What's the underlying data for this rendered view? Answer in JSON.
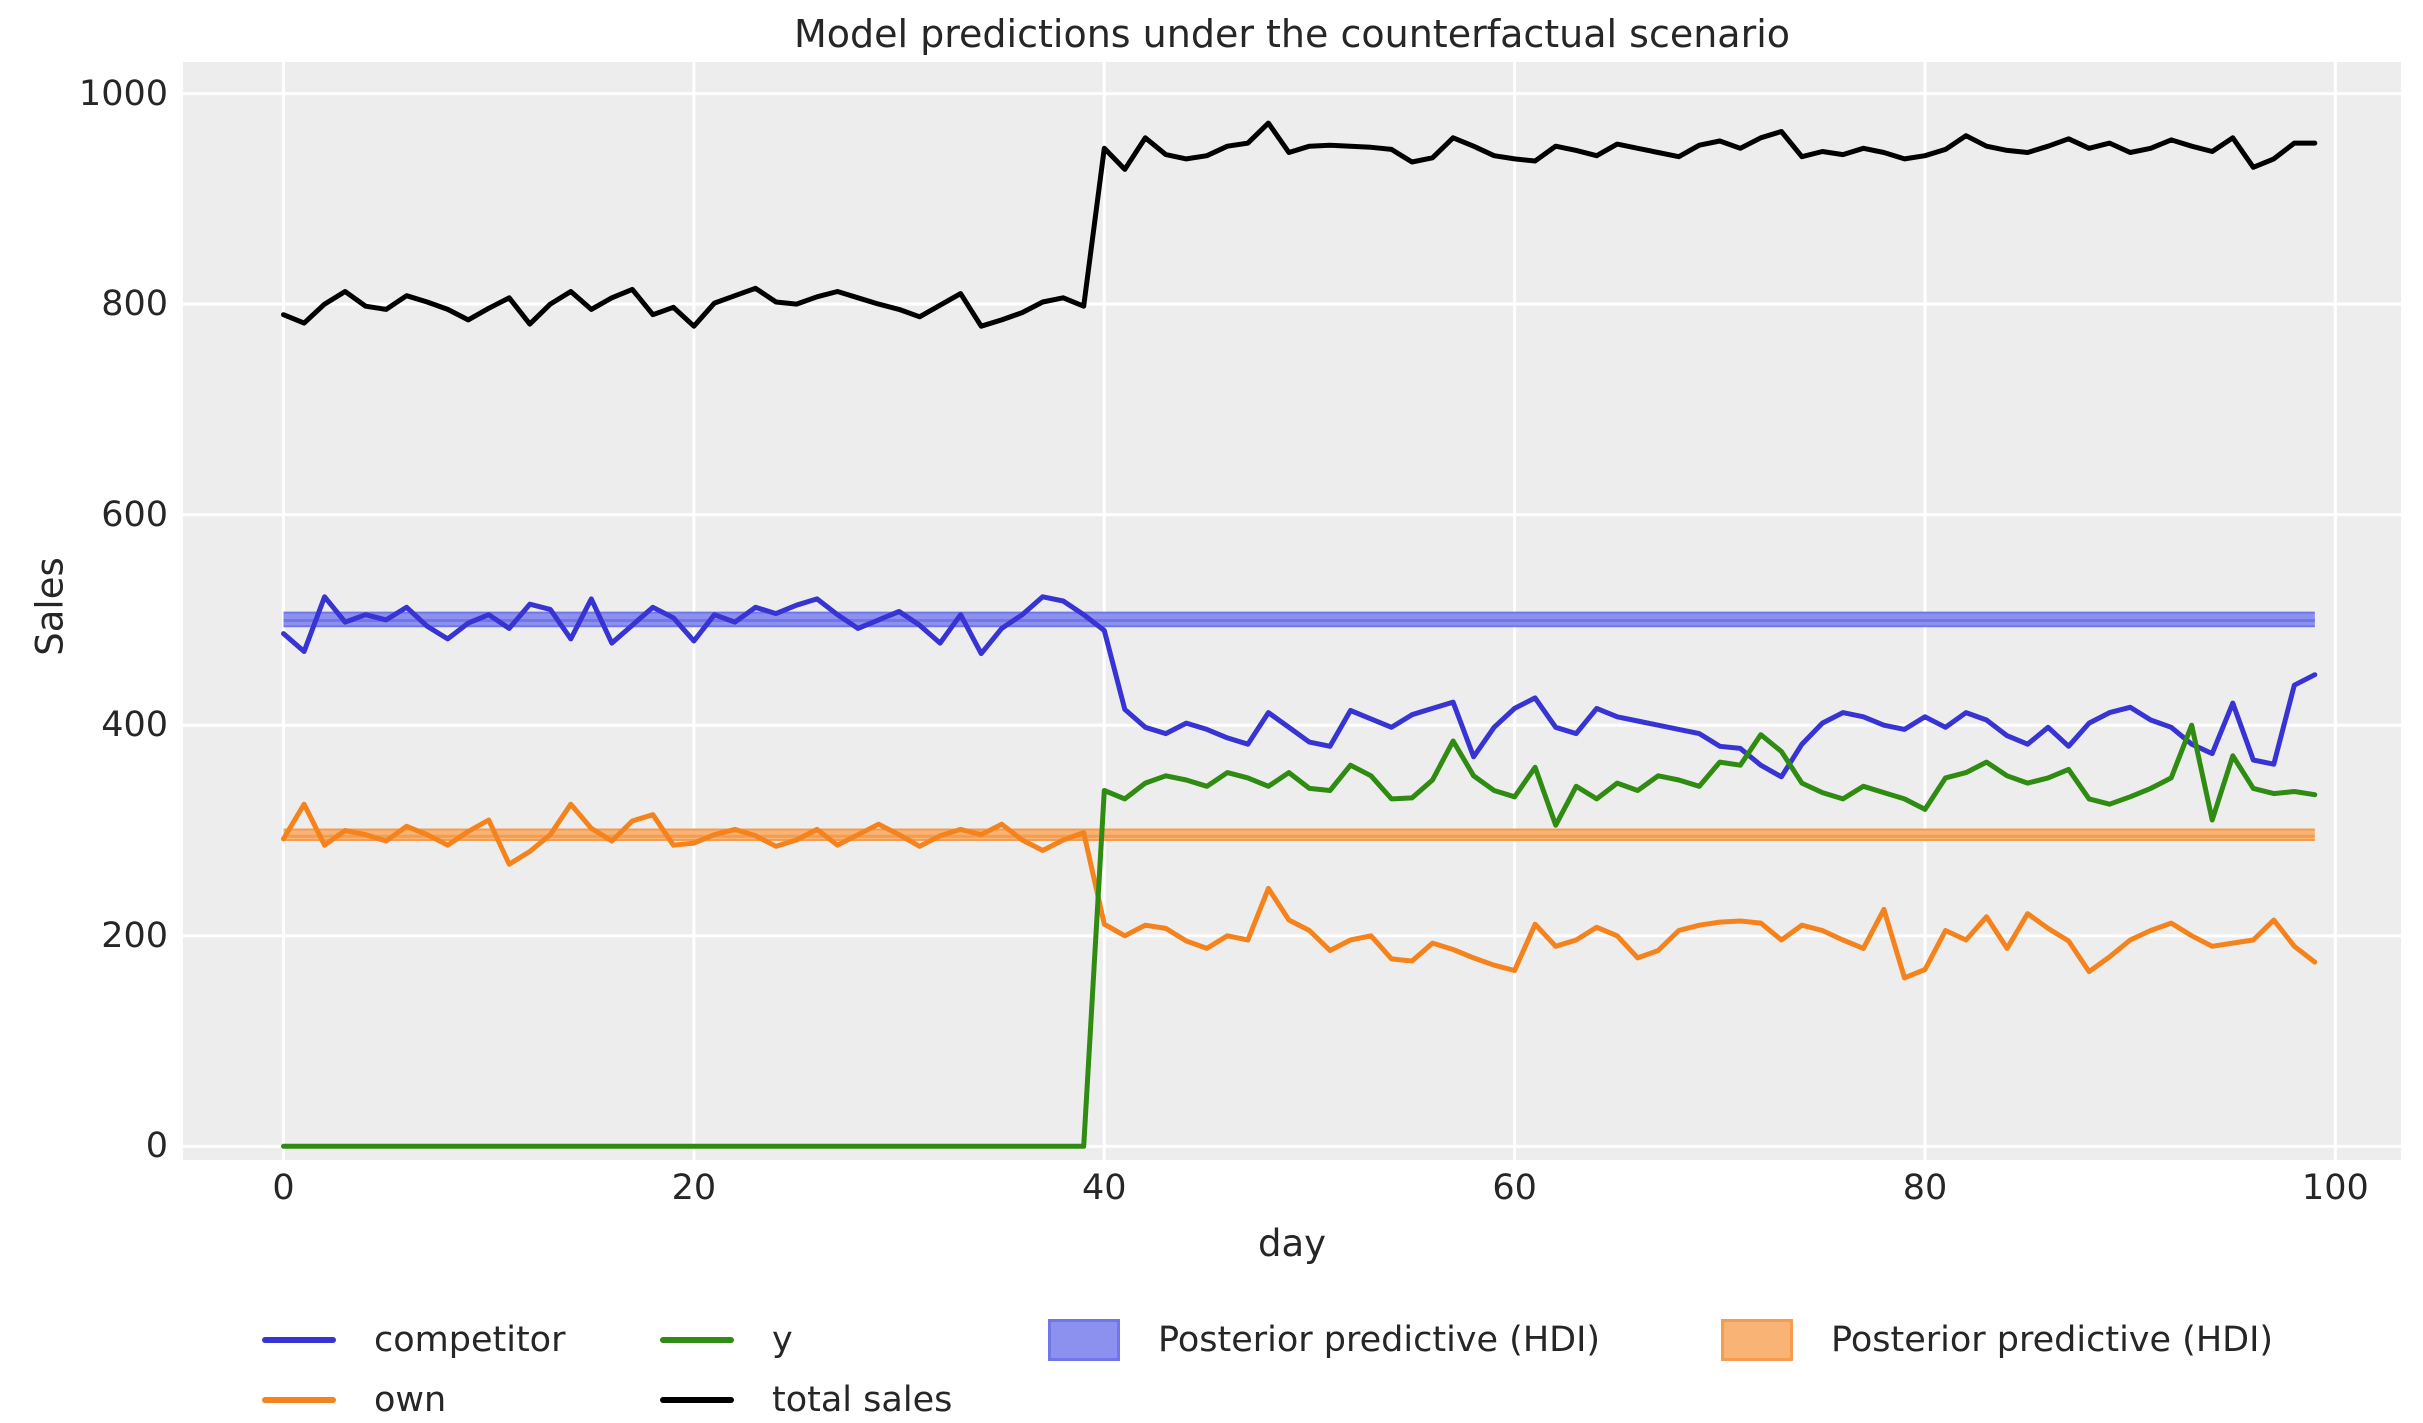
{
  "styles": {
    "figure_bg": "#ffffff",
    "axes_bg": "#ededed",
    "grid_color": "#ffffff",
    "text_color": "#262626"
  },
  "chart_data": {
    "type": "line",
    "title": "Model predictions under the counterfactual scenario",
    "xlabel": "day",
    "ylabel": "Sales",
    "grid": true,
    "legend_position": "bottom",
    "xlim": [
      -4.9,
      103.2
    ],
    "ylim": [
      -13,
      1030
    ],
    "xticks": [
      0,
      20,
      40,
      60,
      80,
      100
    ],
    "yticks": [
      0,
      200,
      400,
      600,
      800,
      1000
    ],
    "x_start": 0,
    "x_step": 1,
    "n_days": 100,
    "intervention_day": 40,
    "series": [
      {
        "name": "competitor",
        "color": "#3834d3",
        "values": [
          487,
          470,
          522,
          498,
          505,
          500,
          512,
          494,
          482,
          497,
          505,
          492,
          515,
          510,
          482,
          520,
          478,
          495,
          512,
          502,
          480,
          505,
          498,
          512,
          506,
          514,
          520,
          505,
          492,
          500,
          508,
          495,
          478,
          505,
          468,
          492,
          505,
          522,
          518,
          505,
          490,
          415,
          398,
          392,
          402,
          396,
          388,
          382,
          412,
          398,
          384,
          380,
          414,
          406,
          398,
          410,
          416,
          422,
          370,
          398,
          416,
          426,
          398,
          392,
          416,
          408,
          404,
          400,
          396,
          392,
          380,
          378,
          362,
          351,
          382,
          402,
          412,
          408,
          400,
          396,
          408,
          398,
          412,
          405,
          390,
          382,
          398,
          380,
          402,
          412,
          417,
          405,
          398,
          382,
          373,
          421,
          367,
          363,
          438,
          448
        ]
      },
      {
        "name": "own",
        "color": "#f5831d",
        "values": [
          292,
          325,
          286,
          300,
          296,
          290,
          304,
          296,
          286,
          299,
          310,
          268,
          280,
          296,
          325,
          302,
          290,
          309,
          315,
          286,
          288,
          296,
          301,
          295,
          285,
          291,
          301,
          286,
          296,
          306,
          296,
          285,
          295,
          301,
          296,
          306,
          291,
          281,
          291,
          298,
          211,
          200,
          210,
          207,
          195,
          188,
          200,
          196,
          245,
          215,
          205,
          186,
          196,
          200,
          178,
          176,
          193,
          187,
          179,
          172,
          167,
          211,
          190,
          196,
          208,
          200,
          179,
          186,
          205,
          210,
          213,
          214,
          212,
          196,
          210,
          205,
          196,
          188,
          225,
          160,
          168,
          205,
          196,
          218,
          188,
          221,
          207,
          195,
          166,
          180,
          196,
          205,
          212,
          200,
          190,
          193,
          196,
          215,
          190,
          175
        ]
      },
      {
        "name": "y",
        "color": "#2f8b11",
        "values": [
          0,
          0,
          0,
          0,
          0,
          0,
          0,
          0,
          0,
          0,
          0,
          0,
          0,
          0,
          0,
          0,
          0,
          0,
          0,
          0,
          0,
          0,
          0,
          0,
          0,
          0,
          0,
          0,
          0,
          0,
          0,
          0,
          0,
          0,
          0,
          0,
          0,
          0,
          0,
          0,
          338,
          330,
          345,
          352,
          348,
          342,
          355,
          350,
          342,
          355,
          340,
          338,
          362,
          352,
          330,
          331,
          348,
          385,
          352,
          338,
          332,
          360,
          305,
          342,
          330,
          345,
          338,
          352,
          348,
          342,
          365,
          362,
          391,
          375,
          345,
          336,
          330,
          342,
          336,
          330,
          320,
          350,
          355,
          365,
          352,
          345,
          350,
          358,
          330,
          325,
          332,
          340,
          350,
          400,
          310,
          371,
          340,
          335,
          337,
          334
        ]
      },
      {
        "name": "total sales",
        "color": "#000000",
        "values": [
          790,
          782,
          800,
          812,
          798,
          795,
          808,
          802,
          795,
          785,
          796,
          806,
          781,
          800,
          812,
          795,
          806,
          814,
          790,
          797,
          779,
          801,
          808,
          815,
          802,
          800,
          807,
          812,
          806,
          800,
          795,
          788,
          799,
          810,
          779,
          785,
          792,
          802,
          806,
          798,
          948,
          928,
          958,
          942,
          938,
          941,
          950,
          953,
          972,
          944,
          950,
          951,
          950,
          949,
          947,
          935,
          939,
          958,
          950,
          941,
          938,
          936,
          950,
          946,
          941,
          952,
          948,
          944,
          940,
          951,
          955,
          948,
          958,
          964,
          940,
          945,
          942,
          948,
          944,
          938,
          941,
          947,
          960,
          950,
          946,
          944,
          950,
          957,
          948,
          953,
          944,
          948,
          956,
          950,
          945,
          958,
          930,
          938,
          953,
          953
        ]
      }
    ],
    "bands": [
      {
        "name": "Posterior predictive (HDI)",
        "series": "competitor",
        "color": "#8c90ee",
        "edge_color": "#7176e9",
        "lower": 494,
        "upper": 507,
        "mean": 499.5,
        "x_start": 0,
        "x_end": 99
      },
      {
        "name": "Posterior predictive (HDI)",
        "series": "own",
        "color": "#f8b375",
        "edge_color": "#f39d50",
        "lower": 291,
        "upper": 301,
        "mean": 294.5,
        "x_start": 0,
        "x_end": 99
      }
    ]
  },
  "legend": {
    "entries": [
      {
        "label": "competitor",
        "type": "line",
        "color": "#3834d3"
      },
      {
        "label": "own",
        "type": "line",
        "color": "#f5831d"
      },
      {
        "label": "y",
        "type": "line",
        "color": "#2f8b11"
      },
      {
        "label": "total sales",
        "type": "line",
        "color": "#000000"
      },
      {
        "label": "Posterior predictive (HDI)",
        "type": "patch",
        "color": "#8c90ee",
        "edge": "#7176e9"
      },
      {
        "label": "Posterior predictive (HDI)",
        "type": "patch",
        "color": "#f8b375",
        "edge": "#f39d50"
      }
    ]
  }
}
